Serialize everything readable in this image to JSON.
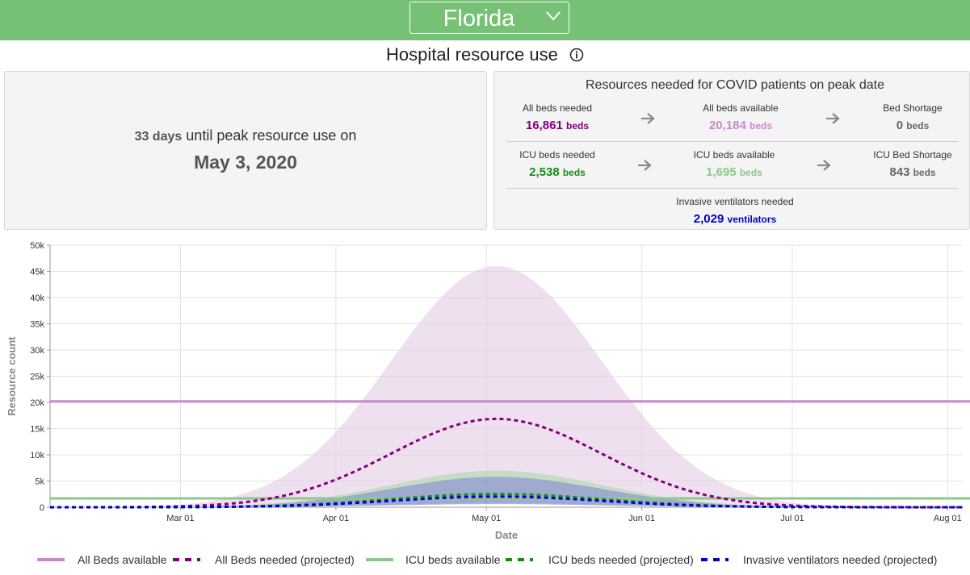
{
  "header": {
    "state": "Florida",
    "title": "Hospital resource use"
  },
  "peak": {
    "days": "33 days",
    "text": "until peak resource use on",
    "date": "May 3, 2020"
  },
  "resources": {
    "title": "Resources needed for COVID patients on peak date",
    "beds_needed": {
      "label": "All beds needed",
      "value": "16,861",
      "unit": "beds"
    },
    "beds_available": {
      "label": "All beds available",
      "value": "20,184",
      "unit": "beds"
    },
    "bed_shortage": {
      "label": "Bed Shortage",
      "value": "0",
      "unit": "beds"
    },
    "icu_needed": {
      "label": "ICU beds needed",
      "value": "2,538",
      "unit": "beds"
    },
    "icu_available": {
      "label": "ICU beds available",
      "value": "1,695",
      "unit": "beds"
    },
    "icu_shortage": {
      "label": "ICU Bed Shortage",
      "value": "843",
      "unit": "beds"
    },
    "ventilators": {
      "label": "Invasive ventilators needed",
      "value": "2,029",
      "unit": "ventilators"
    }
  },
  "colors": {
    "beds": "#800080",
    "beds_available": "#c98ac9",
    "icu": "#1a8a1a",
    "icu_available": "#8cc88c",
    "ventilators": "#0000cc",
    "header": "#77c176"
  },
  "chart_data": {
    "type": "line",
    "xlabel": "Date",
    "ylabel": "Resource count",
    "x_range": [
      "2020-02-04",
      "2020-08-04"
    ],
    "x_ticks": [
      "2020-03-01",
      "2020-04-01",
      "2020-05-01",
      "2020-06-01",
      "2020-07-01",
      "2020-08-01"
    ],
    "x_tick_labels": [
      "Mar 01",
      "Apr 01",
      "May 01",
      "Jun 01",
      "Jul 01",
      "Aug 01"
    ],
    "ylim": [
      0,
      50000
    ],
    "y_ticks": [
      0,
      5000,
      10000,
      15000,
      20000,
      25000,
      30000,
      35000,
      40000,
      45000,
      50000
    ],
    "y_tick_labels": [
      "0",
      "5k",
      "10k",
      "15k",
      "20k",
      "25k",
      "30k",
      "35k",
      "40k",
      "45k",
      "50k"
    ],
    "grid": true,
    "legend_position": "bottom",
    "peak_date": "2020-05-03",
    "series": [
      {
        "name": "All Beds available",
        "kind": "constant",
        "value": 20184,
        "color": "#c98ac9"
      },
      {
        "name": "All Beds needed (projected)",
        "kind": "projection",
        "peak": 16861,
        "color": "#800080",
        "band_upper_peak": 46000,
        "band_lower_peak": 5800,
        "band_color": "#e4cce4"
      },
      {
        "name": "ICU beds available",
        "kind": "constant",
        "value": 1695,
        "color": "#8cc88c"
      },
      {
        "name": "ICU beds needed (projected)",
        "kind": "projection",
        "peak": 2538,
        "color": "#1a8a1a",
        "band_upper_peak": 7000,
        "band_lower_peak": 800,
        "band_color": "#a8d8a8"
      },
      {
        "name": "Invasive ventilators needed (projected)",
        "kind": "projection",
        "peak": 2029,
        "color": "#0000cc",
        "band_upper_peak": 5800,
        "band_lower_peak": 600,
        "band_color": "#8080d0"
      }
    ]
  }
}
